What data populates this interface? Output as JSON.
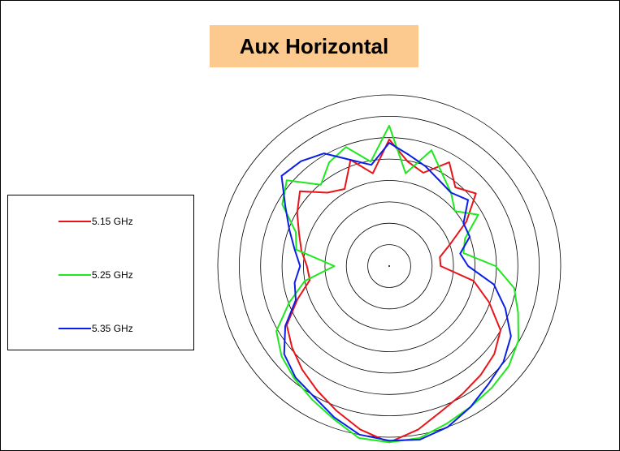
{
  "colors": {
    "title_bg": "#fcc98f",
    "grid": "#000000",
    "red": "#e8141a",
    "green": "#1ee81e",
    "blue": "#0a1ee6"
  },
  "chart_data": {
    "type": "polar-line",
    "title": "Aux Horizontal",
    "grid": "concentric circles, no angular spokes",
    "legend_placement": "left",
    "angle_unit": "degrees (0 = top, clockwise)",
    "radial_unit": "relative level, 0 = centre, 1 = outermost circle",
    "rings": [
      0.125,
      0.25,
      0.375,
      0.5,
      0.625,
      0.75,
      0.875,
      1.0
    ],
    "angles": [
      0,
      10,
      20,
      30,
      40,
      50,
      60,
      70,
      80,
      90,
      100,
      110,
      120,
      130,
      140,
      150,
      160,
      170,
      180,
      190,
      200,
      210,
      220,
      230,
      240,
      250,
      260,
      270,
      280,
      290,
      300,
      310,
      320,
      330,
      340,
      350
    ],
    "series": [
      {
        "name": "5.15 GHz",
        "color": "red",
        "r": [
          0.74,
          0.62,
          0.58,
          0.7,
          0.6,
          0.66,
          0.52,
          0.38,
          0.3,
          0.3,
          0.5,
          0.62,
          0.75,
          0.8,
          0.83,
          0.86,
          0.9,
          0.97,
          1.03,
          0.97,
          0.9,
          0.84,
          0.79,
          0.74,
          0.69,
          0.57,
          0.47,
          0.48,
          0.52,
          0.56,
          0.62,
          0.68,
          0.56,
          0.52,
          0.66,
          0.55
        ]
      },
      {
        "name": "5.25 GHz",
        "color": "green",
        "r": [
          0.82,
          0.55,
          0.72,
          0.62,
          0.56,
          0.5,
          0.6,
          0.47,
          0.44,
          0.62,
          0.74,
          0.8,
          0.87,
          0.91,
          0.93,
          0.95,
          0.98,
          1.02,
          1.03,
          1.02,
          0.95,
          0.9,
          0.86,
          0.82,
          0.76,
          0.62,
          0.5,
          0.32,
          0.55,
          0.58,
          0.72,
          0.78,
          0.62,
          0.7,
          0.74,
          0.62
        ]
      },
      {
        "name": "5.35 GHz",
        "color": "blue",
        "r": [
          0.72,
          0.66,
          0.62,
          0.58,
          0.56,
          0.6,
          0.5,
          0.5,
          0.42,
          0.46,
          0.62,
          0.72,
          0.82,
          0.87,
          0.9,
          0.95,
          1.0,
          1.03,
          1.02,
          1.0,
          0.94,
          0.88,
          0.85,
          0.8,
          0.7,
          0.58,
          0.56,
          0.52,
          0.56,
          0.62,
          0.7,
          0.82,
          0.8,
          0.76,
          0.66,
          0.6
        ]
      }
    ]
  }
}
